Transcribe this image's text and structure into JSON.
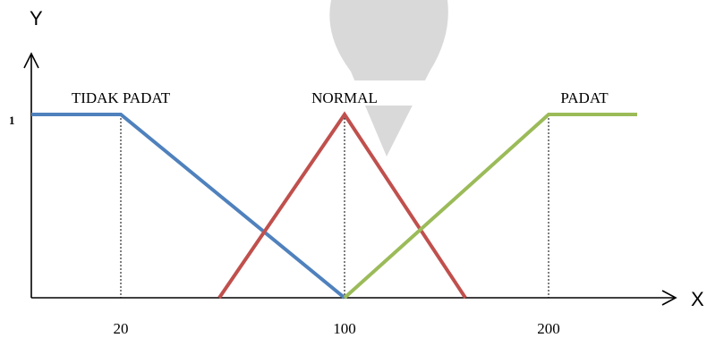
{
  "chart_data": {
    "type": "line",
    "xlabel": "X",
    "ylabel": "Y",
    "y_tick_label": "1",
    "x_ticks": [
      {
        "value": 20,
        "label": "20"
      },
      {
        "value": 100,
        "label": "100"
      },
      {
        "value": 200,
        "label": "200"
      }
    ],
    "xlim": [
      0,
      215
    ],
    "ylim": [
      0,
      1
    ],
    "grid": false,
    "legend": "none",
    "series": [
      {
        "name": "TIDAK PADAT",
        "color": "#4f81bd",
        "points": [
          [
            0,
            1
          ],
          [
            20,
            1
          ],
          [
            100,
            0
          ]
        ]
      },
      {
        "name": "NORMAL",
        "color": "#c0504d",
        "points": [
          [
            45,
            0
          ],
          [
            100,
            1
          ],
          [
            150,
            0
          ]
        ]
      },
      {
        "name": "PADAT",
        "color": "#9bbb59",
        "points": [
          [
            100,
            0
          ],
          [
            200,
            1
          ],
          [
            240,
            1
          ]
        ]
      }
    ]
  }
}
